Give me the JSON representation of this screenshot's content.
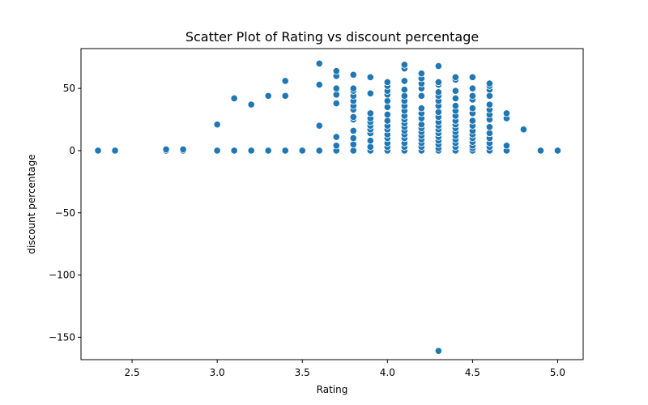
{
  "chart_data": {
    "type": "scatter",
    "title": "Scatter Plot of Rating vs discount percentage",
    "xlabel": "Rating",
    "ylabel": "discount percentage",
    "xlim": [
      2.2,
      5.15
    ],
    "ylim": [
      -168,
      82
    ],
    "xticks": [
      2.5,
      3.0,
      3.5,
      4.0,
      4.5,
      5.0
    ],
    "xtick_labels": [
      "2.5",
      "3.0",
      "3.5",
      "4.0",
      "4.5",
      "5.0"
    ],
    "yticks": [
      -150,
      -100,
      -50,
      0,
      50
    ],
    "ytick_labels": [
      "−150",
      "−100",
      "−50",
      "0",
      "50"
    ],
    "grid": false,
    "color": "#1f77b4",
    "points": [
      {
        "x": 2.3,
        "y": 0
      },
      {
        "x": 2.4,
        "y": 0
      },
      {
        "x": 2.7,
        "y": 0
      },
      {
        "x": 2.7,
        "y": 1
      },
      {
        "x": 2.8,
        "y": 0
      },
      {
        "x": 2.8,
        "y": 1
      },
      {
        "x": 3.0,
        "y": 0
      },
      {
        "x": 3.0,
        "y": 21
      },
      {
        "x": 3.1,
        "y": 0
      },
      {
        "x": 3.1,
        "y": 42
      },
      {
        "x": 3.2,
        "y": 0
      },
      {
        "x": 3.2,
        "y": 37
      },
      {
        "x": 3.3,
        "y": 0
      },
      {
        "x": 3.3,
        "y": 44
      },
      {
        "x": 3.4,
        "y": 0
      },
      {
        "x": 3.4,
        "y": 44
      },
      {
        "x": 3.4,
        "y": 56
      },
      {
        "x": 3.5,
        "y": 0
      },
      {
        "x": 3.6,
        "y": 0
      },
      {
        "x": 3.6,
        "y": 20
      },
      {
        "x": 3.6,
        "y": 53
      },
      {
        "x": 3.6,
        "y": 70
      },
      {
        "x": 3.7,
        "y": 0
      },
      {
        "x": 3.7,
        "y": 4
      },
      {
        "x": 3.7,
        "y": 11
      },
      {
        "x": 3.7,
        "y": 38
      },
      {
        "x": 3.7,
        "y": 45
      },
      {
        "x": 3.7,
        "y": 50
      },
      {
        "x": 3.7,
        "y": 60
      },
      {
        "x": 3.7,
        "y": 64
      },
      {
        "x": 3.8,
        "y": 0
      },
      {
        "x": 3.8,
        "y": 5
      },
      {
        "x": 3.8,
        "y": 10
      },
      {
        "x": 3.8,
        "y": 16
      },
      {
        "x": 3.8,
        "y": 25
      },
      {
        "x": 3.8,
        "y": 27
      },
      {
        "x": 3.8,
        "y": 33
      },
      {
        "x": 3.8,
        "y": 36
      },
      {
        "x": 3.8,
        "y": 40
      },
      {
        "x": 3.8,
        "y": 44
      },
      {
        "x": 3.8,
        "y": 48
      },
      {
        "x": 3.8,
        "y": 50
      },
      {
        "x": 3.8,
        "y": 61
      },
      {
        "x": 3.9,
        "y": 0
      },
      {
        "x": 3.9,
        "y": 3
      },
      {
        "x": 3.9,
        "y": 8
      },
      {
        "x": 3.9,
        "y": 14
      },
      {
        "x": 3.9,
        "y": 17
      },
      {
        "x": 3.9,
        "y": 20
      },
      {
        "x": 3.9,
        "y": 23
      },
      {
        "x": 3.9,
        "y": 26
      },
      {
        "x": 3.9,
        "y": 30
      },
      {
        "x": 3.9,
        "y": 46
      },
      {
        "x": 3.9,
        "y": 59
      },
      {
        "x": 4.0,
        "y": 0
      },
      {
        "x": 4.0,
        "y": 3
      },
      {
        "x": 4.0,
        "y": 6
      },
      {
        "x": 4.0,
        "y": 10
      },
      {
        "x": 4.0,
        "y": 13
      },
      {
        "x": 4.0,
        "y": 17
      },
      {
        "x": 4.0,
        "y": 20
      },
      {
        "x": 4.0,
        "y": 24
      },
      {
        "x": 4.0,
        "y": 29
      },
      {
        "x": 4.0,
        "y": 35
      },
      {
        "x": 4.0,
        "y": 40
      },
      {
        "x": 4.0,
        "y": 45
      },
      {
        "x": 4.0,
        "y": 48
      },
      {
        "x": 4.0,
        "y": 52
      },
      {
        "x": 4.0,
        "y": 55
      },
      {
        "x": 4.1,
        "y": 0
      },
      {
        "x": 4.1,
        "y": 3
      },
      {
        "x": 4.1,
        "y": 6
      },
      {
        "x": 4.1,
        "y": 10
      },
      {
        "x": 4.1,
        "y": 13
      },
      {
        "x": 4.1,
        "y": 16
      },
      {
        "x": 4.1,
        "y": 19
      },
      {
        "x": 4.1,
        "y": 22
      },
      {
        "x": 4.1,
        "y": 25
      },
      {
        "x": 4.1,
        "y": 28
      },
      {
        "x": 4.1,
        "y": 32
      },
      {
        "x": 4.1,
        "y": 36
      },
      {
        "x": 4.1,
        "y": 40
      },
      {
        "x": 4.1,
        "y": 44
      },
      {
        "x": 4.1,
        "y": 49
      },
      {
        "x": 4.1,
        "y": 56
      },
      {
        "x": 4.1,
        "y": 66
      },
      {
        "x": 4.1,
        "y": 69
      },
      {
        "x": 4.2,
        "y": 0
      },
      {
        "x": 4.2,
        "y": 3
      },
      {
        "x": 4.2,
        "y": 6
      },
      {
        "x": 4.2,
        "y": 9
      },
      {
        "x": 4.2,
        "y": 12
      },
      {
        "x": 4.2,
        "y": 15
      },
      {
        "x": 4.2,
        "y": 18
      },
      {
        "x": 4.2,
        "y": 21
      },
      {
        "x": 4.2,
        "y": 26
      },
      {
        "x": 4.2,
        "y": 30
      },
      {
        "x": 4.2,
        "y": 34
      },
      {
        "x": 4.2,
        "y": 44
      },
      {
        "x": 4.2,
        "y": 50
      },
      {
        "x": 4.2,
        "y": 54
      },
      {
        "x": 4.2,
        "y": 58
      },
      {
        "x": 4.2,
        "y": 62
      },
      {
        "x": 4.3,
        "y": 0
      },
      {
        "x": 4.3,
        "y": 2
      },
      {
        "x": 4.3,
        "y": 5
      },
      {
        "x": 4.3,
        "y": 8
      },
      {
        "x": 4.3,
        "y": 11
      },
      {
        "x": 4.3,
        "y": 14
      },
      {
        "x": 4.3,
        "y": 17
      },
      {
        "x": 4.3,
        "y": 20
      },
      {
        "x": 4.3,
        "y": 23
      },
      {
        "x": 4.3,
        "y": 27
      },
      {
        "x": 4.3,
        "y": 31
      },
      {
        "x": 4.3,
        "y": 36
      },
      {
        "x": 4.3,
        "y": 40
      },
      {
        "x": 4.3,
        "y": 44
      },
      {
        "x": 4.3,
        "y": 47
      },
      {
        "x": 4.3,
        "y": 53
      },
      {
        "x": 4.3,
        "y": 55
      },
      {
        "x": 4.3,
        "y": 68
      },
      {
        "x": 4.3,
        "y": -161
      },
      {
        "x": 4.4,
        "y": 0
      },
      {
        "x": 4.4,
        "y": 3
      },
      {
        "x": 4.4,
        "y": 6
      },
      {
        "x": 4.4,
        "y": 9
      },
      {
        "x": 4.4,
        "y": 12
      },
      {
        "x": 4.4,
        "y": 15
      },
      {
        "x": 4.4,
        "y": 18
      },
      {
        "x": 4.4,
        "y": 21
      },
      {
        "x": 4.4,
        "y": 24
      },
      {
        "x": 4.4,
        "y": 28
      },
      {
        "x": 4.4,
        "y": 32
      },
      {
        "x": 4.4,
        "y": 36
      },
      {
        "x": 4.4,
        "y": 42
      },
      {
        "x": 4.4,
        "y": 48
      },
      {
        "x": 4.4,
        "y": 57
      },
      {
        "x": 4.4,
        "y": 59
      },
      {
        "x": 4.5,
        "y": 0
      },
      {
        "x": 4.5,
        "y": 2
      },
      {
        "x": 4.5,
        "y": 4
      },
      {
        "x": 4.5,
        "y": 7
      },
      {
        "x": 4.5,
        "y": 10
      },
      {
        "x": 4.5,
        "y": 13
      },
      {
        "x": 4.5,
        "y": 16
      },
      {
        "x": 4.5,
        "y": 20
      },
      {
        "x": 4.5,
        "y": 24
      },
      {
        "x": 4.5,
        "y": 30
      },
      {
        "x": 4.5,
        "y": 34
      },
      {
        "x": 4.5,
        "y": 41
      },
      {
        "x": 4.5,
        "y": 44
      },
      {
        "x": 4.5,
        "y": 50
      },
      {
        "x": 4.5,
        "y": 59
      },
      {
        "x": 4.6,
        "y": 0
      },
      {
        "x": 4.6,
        "y": 3
      },
      {
        "x": 4.6,
        "y": 6
      },
      {
        "x": 4.6,
        "y": 10
      },
      {
        "x": 4.6,
        "y": 14
      },
      {
        "x": 4.6,
        "y": 19
      },
      {
        "x": 4.6,
        "y": 25
      },
      {
        "x": 4.6,
        "y": 29
      },
      {
        "x": 4.6,
        "y": 33
      },
      {
        "x": 4.6,
        "y": 37
      },
      {
        "x": 4.6,
        "y": 44
      },
      {
        "x": 4.6,
        "y": 49
      },
      {
        "x": 4.6,
        "y": 52
      },
      {
        "x": 4.6,
        "y": 54
      },
      {
        "x": 4.7,
        "y": 0
      },
      {
        "x": 4.7,
        "y": 4
      },
      {
        "x": 4.7,
        "y": 26
      },
      {
        "x": 4.7,
        "y": 30
      },
      {
        "x": 4.8,
        "y": 17
      },
      {
        "x": 4.9,
        "y": 0
      },
      {
        "x": 5.0,
        "y": 0
      }
    ]
  }
}
